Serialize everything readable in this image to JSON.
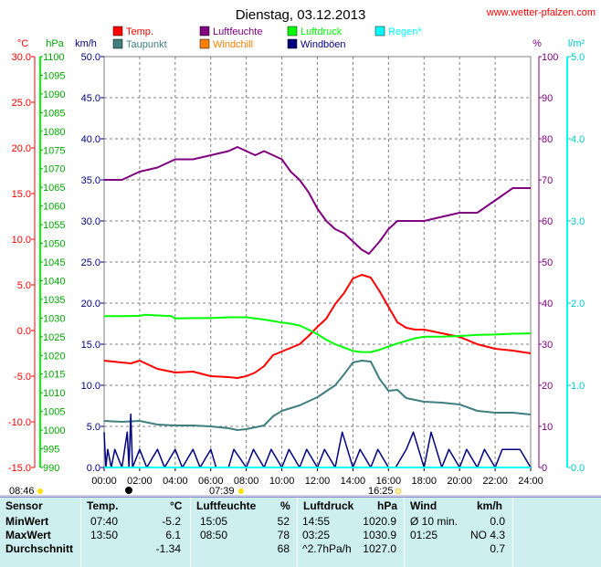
{
  "chart_data": {
    "type": "line",
    "title": "Dienstag, 03.12.2013",
    "source": "www.wetter-pfalzen.com",
    "x_ticks": [
      "00:00",
      "02:00",
      "04:00",
      "06:00",
      "08:00",
      "10:00",
      "12:00",
      "14:00",
      "16:00",
      "18:00",
      "20:00",
      "22:00",
      "24:00"
    ],
    "x_range": [
      0,
      24
    ],
    "axes": {
      "temp": {
        "unit": "°C",
        "min": -15,
        "max": 30,
        "ticks": [
          "30.0",
          "25.0",
          "20.0",
          "15.0",
          "10.0",
          "5.0",
          "0.0",
          "-5.0",
          "-10.0",
          "-15.0"
        ],
        "color": "#ff0000"
      },
      "pressure": {
        "unit": "hPa",
        "min": 990,
        "max": 1100,
        "ticks": [
          "1100",
          "1095",
          "1090",
          "1085",
          "1080",
          "1075",
          "1070",
          "1065",
          "1060",
          "1055",
          "1050",
          "1045",
          "1040",
          "1035",
          "1030",
          "1025",
          "1020",
          "1015",
          "1010",
          "1005",
          "1000",
          "995",
          "990"
        ],
        "color": "#00d000"
      },
      "wind": {
        "unit": "km/h",
        "min": 0,
        "max": 50,
        "ticks": [
          "50.0",
          "45.0",
          "40.0",
          "35.0",
          "30.0",
          "25.0",
          "20.0",
          "15.0",
          "10.0",
          "5.0",
          "0.0"
        ],
        "color": "#000080"
      },
      "humidity": {
        "unit": "%",
        "min": 0,
        "max": 100,
        "ticks": [
          "100",
          "90",
          "80",
          "70",
          "60",
          "50",
          "40",
          "30",
          "20",
          "10",
          "0"
        ],
        "color": "#800080"
      },
      "rain": {
        "unit": "l/m²",
        "min": 0,
        "max": 5,
        "ticks": [
          "5.0",
          "4.0",
          "3.0",
          "2.0",
          "1.0",
          "0.0"
        ],
        "color": "#00cccc"
      }
    },
    "legend": [
      {
        "label": "Temp.",
        "color": "#ff0000"
      },
      {
        "label": "Taupunkt",
        "color": "#3f7f7f"
      },
      {
        "label": "Luftfeuchte",
        "color": "#800080"
      },
      {
        "label": "Windchill",
        "color": "#ff8000"
      },
      {
        "label": "Luftdruck",
        "color": "#00ff00"
      },
      {
        "label": "Windböen",
        "color": "#000080"
      },
      {
        "label": "Regen*",
        "color": "#00ffff"
      }
    ],
    "series": [
      {
        "name": "Temp.",
        "axis": "temp",
        "color": "#ff0000",
        "x": [
          0,
          1,
          1.5,
          2,
          3,
          4,
          5,
          6,
          7,
          7.5,
          8,
          8.5,
          9,
          9.5,
          10,
          10.5,
          11,
          11.5,
          12,
          12.5,
          13,
          13.5,
          14,
          14.5,
          15,
          15.5,
          16,
          16.5,
          17,
          17.5,
          18,
          19,
          20,
          21,
          22,
          23,
          24
        ],
        "y": [
          -3.3,
          -3.5,
          -3.6,
          -3.3,
          -4.2,
          -4.6,
          -4.5,
          -5.0,
          -5.1,
          -5.2,
          -5.0,
          -4.6,
          -3.9,
          -2.7,
          -2.3,
          -1.9,
          -1.5,
          -0.6,
          0.4,
          1.3,
          2.9,
          4.1,
          5.7,
          6.1,
          5.8,
          4.3,
          2.6,
          0.9,
          0.3,
          0.1,
          0.1,
          -0.3,
          -0.7,
          -1.5,
          -2.0,
          -2.2,
          -2.5
        ]
      },
      {
        "name": "Taupunkt",
        "axis": "temp",
        "color": "#3f7f7f",
        "x": [
          0,
          1,
          2,
          3,
          4,
          5,
          6,
          7,
          7.5,
          8,
          9,
          9.5,
          10,
          10.5,
          11,
          12,
          13,
          13.5,
          14,
          14.5,
          15,
          15.5,
          16,
          16.5,
          17,
          18,
          19,
          20,
          21,
          22,
          23,
          24
        ],
        "y": [
          -9.9,
          -10.0,
          -9.9,
          -10.3,
          -10.4,
          -10.4,
          -10.5,
          -10.7,
          -10.9,
          -10.8,
          -10.4,
          -9.4,
          -8.8,
          -8.5,
          -8.2,
          -7.3,
          -6.0,
          -4.8,
          -3.5,
          -3.3,
          -3.4,
          -5.3,
          -6.6,
          -6.5,
          -7.4,
          -7.8,
          -7.9,
          -8.1,
          -8.8,
          -9.0,
          -9.0,
          -9.2
        ]
      },
      {
        "name": "Luftfeuchte",
        "axis": "humidity",
        "color": "#800080",
        "x": [
          0,
          1,
          2,
          3,
          4,
          5,
          6,
          7,
          7.5,
          8,
          8.5,
          9,
          9.5,
          10,
          10.5,
          11,
          11.5,
          12,
          12.5,
          13,
          13.5,
          14,
          14.5,
          14.9,
          15.5,
          16,
          16.5,
          17,
          18,
          19,
          20,
          21,
          22,
          23,
          24
        ],
        "y": [
          70,
          70,
          72,
          73,
          75,
          75,
          76,
          77,
          78,
          77,
          76,
          77,
          76,
          75,
          72,
          70,
          67,
          63,
          60,
          58,
          57,
          55,
          53,
          52,
          55,
          58,
          60,
          60,
          60,
          61,
          62,
          62,
          65,
          68,
          68
        ]
      },
      {
        "name": "Luftdruck",
        "axis": "pressure",
        "color": "#00ff00",
        "x": [
          0,
          1,
          2,
          2.3,
          3,
          3.8,
          4,
          5,
          6,
          7,
          8,
          9,
          9.5,
          10,
          10.5,
          11,
          11.5,
          12,
          12.5,
          13,
          13.5,
          14,
          14.5,
          15,
          15.5,
          16,
          16.5,
          17,
          17.5,
          18,
          19,
          20,
          21,
          22,
          23,
          24
        ],
        "y": [
          1030.5,
          1030.5,
          1030.6,
          1030.9,
          1030.7,
          1030.5,
          1029.9,
          1030.0,
          1030.0,
          1030.2,
          1030.2,
          1029.6,
          1029.2,
          1028.8,
          1028.5,
          1028.0,
          1026.9,
          1025.7,
          1024.2,
          1023.0,
          1022.1,
          1021.2,
          1020.9,
          1020.9,
          1021.5,
          1022.4,
          1023.2,
          1023.9,
          1024.6,
          1025.0,
          1025.0,
          1025.2,
          1025.5,
          1025.6,
          1025.8,
          1025.9
        ]
      },
      {
        "name": "Windböen",
        "axis": "wind",
        "color": "#000080",
        "x": [
          0,
          0.1,
          0.2,
          0.4,
          0.6,
          1,
          1.3,
          1.4,
          1.5,
          1.6,
          2,
          2.4,
          3,
          3.4,
          4,
          4.4,
          5,
          5.4,
          6,
          6.3,
          7,
          7.3,
          8,
          8.4,
          9,
          9.4,
          10,
          10.4,
          11,
          11.4,
          12,
          12.4,
          13,
          13.4,
          14,
          14.4,
          15,
          15.4,
          16,
          16.4,
          17,
          17.4,
          18,
          18.4,
          19,
          19.4,
          20,
          20.4,
          21,
          21.4,
          22,
          22.4,
          23,
          23.4,
          24
        ],
        "y": [
          4.3,
          0,
          2.2,
          0,
          2.2,
          0,
          4.3,
          0,
          6.5,
          0,
          2.2,
          0,
          2.2,
          0,
          2.2,
          0,
          2.2,
          0,
          2.2,
          0,
          0,
          2.2,
          0,
          2.2,
          0,
          2.2,
          0,
          2.2,
          0,
          2.2,
          0,
          2.2,
          0,
          4.3,
          0,
          2.2,
          0,
          2.2,
          0,
          0,
          2.2,
          4.3,
          0,
          4.3,
          0,
          2.2,
          0,
          2.2,
          0,
          2.2,
          0,
          2.2,
          2.2,
          2.2,
          0
        ]
      },
      {
        "name": "Regen*",
        "axis": "rain",
        "color": "#00ffff",
        "x": [
          0,
          24
        ],
        "y": [
          0,
          0
        ]
      }
    ],
    "sun": {
      "sunrise": "08:46",
      "sunset": "16:25",
      "moon_time": "07:39"
    }
  },
  "stats": {
    "headers": [
      "Sensor",
      "Temp.",
      "°C",
      "Luftfeuchte",
      "%",
      "Luftdruck",
      "hPa",
      "Wind",
      "km/h"
    ],
    "rows": [
      {
        "label": "MinWert",
        "t_time": "07:40",
        "t_val": "-5.2",
        "h_time": "15:05",
        "h_val": "52",
        "p_time": "14:55",
        "p_val": "1020.9",
        "w_label": "Ø 10 min.",
        "w_val": "0.0"
      },
      {
        "label": "MaxWert",
        "t_time": "13:50",
        "t_val": "6.1",
        "h_time": "08:50",
        "h_val": "78",
        "p_time": "03:25",
        "p_val": "1030.9",
        "w_label": "01:25",
        "w_val": "NO 4.3"
      },
      {
        "label": "Durchschnitt",
        "t_time": "",
        "t_val": "-1.34",
        "h_time": "",
        "h_val": "68",
        "p_time": "^2.7hPa/h",
        "p_val": "1027.0",
        "w_label": "",
        "w_val": "0.7"
      }
    ]
  }
}
